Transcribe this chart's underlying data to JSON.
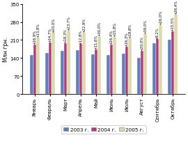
{
  "months": [
    "Январь",
    "Февраль",
    "Март",
    "Апрель",
    "Май",
    "Июнь",
    "Июль",
    "Август",
    "Сентябрь",
    "Октябрь"
  ],
  "values_2003": [
    152,
    160,
    168,
    172,
    155,
    153,
    158,
    140,
    197,
    212
  ],
  "values_2004": [
    193,
    200,
    199,
    194,
    173,
    193,
    184,
    168,
    213,
    245
  ],
  "values_2005": [
    219,
    240,
    246,
    238,
    225,
    223,
    218,
    234,
    268,
    309
  ],
  "labels_2004": [
    "+26,9%",
    "+24,7%",
    "+18,3%",
    "+12,8%",
    "+11,6%",
    "+26,4%",
    "+16,3%",
    "+20,0%",
    "+8,2%",
    "+15,5%"
  ],
  "labels_2005": [
    "+13,8%",
    "+20,0%",
    "+23,7%",
    "+22,9%",
    "+30,0%",
    "+15,8%",
    "+18,8%",
    "+39,0%",
    "+26,0%",
    "+26,4%"
  ],
  "color_2003": "#5b7fbf",
  "color_2004": "#b03a7a",
  "color_2005": "#ddd9a8",
  "ylabel": "Млн грн.",
  "ylim": [
    0,
    350
  ],
  "yticks": [
    0,
    70,
    140,
    210,
    280,
    350
  ],
  "legend_labels": [
    "2003 г.",
    "2004 г.",
    "2005 г."
  ],
  "bar_width": 0.22,
  "annotation_fontsize": 3.8,
  "axis_fontsize": 5.0,
  "legend_fontsize": 5.2,
  "ylabel_fontsize": 5.5,
  "tick_fontsize": 5.0
}
